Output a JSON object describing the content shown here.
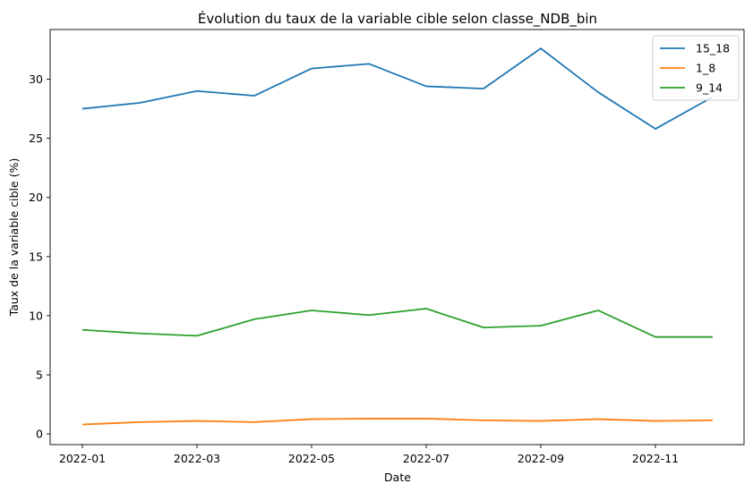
{
  "chart_data": {
    "type": "line",
    "title": "Évolution du taux de la variable cible selon classe_NDB_bin",
    "xlabel": "Date",
    "ylabel": "Taux de la variable cible (%)",
    "x": [
      "2022-01",
      "2022-02",
      "2022-03",
      "2022-04",
      "2022-05",
      "2022-06",
      "2022-07",
      "2022-08",
      "2022-09",
      "2022-10",
      "2022-11",
      "2022-12"
    ],
    "x_tick_labels": [
      "2022-01",
      "2022-03",
      "2022-05",
      "2022-07",
      "2022-09",
      "2022-11"
    ],
    "y_ticks": [
      0,
      5,
      10,
      15,
      20,
      25,
      30
    ],
    "ylim": [
      -0.9,
      34.2
    ],
    "grid": false,
    "legend_position": "top-right",
    "series": [
      {
        "name": "15_18",
        "color": "#1f77b4",
        "values": [
          27.5,
          28.0,
          29.0,
          28.6,
          30.9,
          31.3,
          29.4,
          29.2,
          32.6,
          28.9,
          25.8,
          28.5
        ]
      },
      {
        "name": "1_8",
        "color": "#ff7f0e",
        "values": [
          0.8,
          1.0,
          1.1,
          1.0,
          1.25,
          1.3,
          1.3,
          1.15,
          1.1,
          1.25,
          1.1,
          1.15
        ]
      },
      {
        "name": "9_14",
        "color": "#2ca02c",
        "values": [
          8.8,
          8.5,
          8.3,
          9.7,
          10.45,
          10.05,
          10.6,
          9.0,
          9.15,
          10.45,
          8.2,
          8.2
        ]
      }
    ]
  }
}
